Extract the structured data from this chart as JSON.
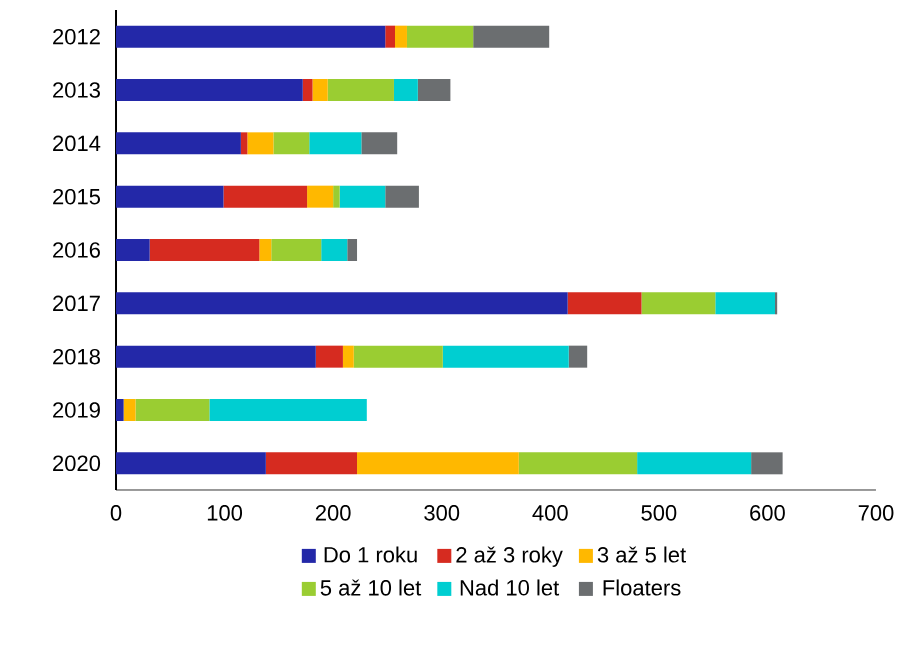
{
  "chart_data": {
    "type": "bar",
    "orientation": "horizontal",
    "stacked": true,
    "categories": [
      "2012",
      "2013",
      "2014",
      "2015",
      "2016",
      "2017",
      "2018",
      "2019",
      "2020"
    ],
    "series": [
      {
        "name": "Do 1 roku",
        "color": "#2328a8",
        "values": [
          248,
          172,
          115,
          99,
          31,
          416,
          184,
          7,
          138
        ]
      },
      {
        "name": "2 až 3 roky",
        "color": "#d62b20",
        "values": [
          9,
          9,
          6,
          77,
          101,
          68,
          25,
          0,
          84
        ]
      },
      {
        "name": "3 až 5 let",
        "color": "#ffb800",
        "values": [
          11,
          14,
          24,
          24,
          11,
          0,
          10,
          11,
          149
        ]
      },
      {
        "name": "5 až 10 let",
        "color": "#9acd32",
        "values": [
          61,
          61,
          33,
          6,
          46,
          68,
          82,
          68,
          109
        ]
      },
      {
        "name": "Nad 10 let",
        "color": "#00ced1",
        "values": [
          0,
          22,
          48,
          42,
          24,
          55,
          116,
          145,
          105
        ]
      },
      {
        "name": "Floaters",
        "color": "#6b6e70",
        "values": [
          70,
          30,
          33,
          31,
          9,
          2,
          17,
          0,
          29
        ]
      }
    ],
    "xlim": [
      0,
      700
    ],
    "xticks": [
      0,
      100,
      200,
      300,
      400,
      500,
      600,
      700
    ],
    "grid": false,
    "legend": "bottom"
  }
}
